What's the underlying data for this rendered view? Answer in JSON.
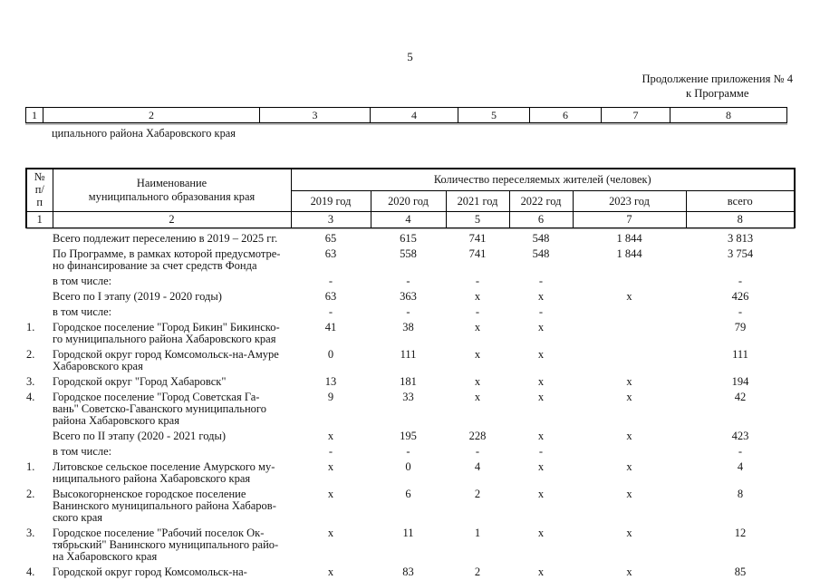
{
  "page": {
    "number": "5",
    "continuation": [
      "Продолжение приложения № 4",
      "к Программе"
    ],
    "carryover_text": "ципального района Хабаровского края"
  },
  "top_table": {
    "index_cells": [
      "1",
      "2",
      "3",
      "4",
      "5",
      "6",
      "7",
      "8"
    ]
  },
  "main_table": {
    "header": {
      "num_col": "№\nп/\nп",
      "name_col": "Наименование\nмуниципального образования края",
      "group_title": "Количество переселяемых жителей (человек)",
      "years": [
        "2019 год",
        "2020 год",
        "2021 год",
        "2022 год",
        "2023 год",
        "всего"
      ],
      "index_cells": [
        "1",
        "2",
        "3",
        "4",
        "5",
        "6",
        "7",
        "8"
      ]
    },
    "rows": [
      {
        "num": "",
        "indent": 1,
        "valign": "top",
        "name_lines": [
          "Всего подлежит переселению в 2019 – 2025 гг."
        ],
        "values": [
          "65",
          "615",
          "741",
          "548",
          "1 844",
          "3 813"
        ]
      },
      {
        "num": "",
        "indent": 0,
        "valign": "top",
        "name_lines": [
          "По Программе, в рамках которой предусмотре-",
          "но финансирование за счет средств Фонда"
        ],
        "values": [
          "63",
          "558",
          "741",
          "548",
          "1 844",
          "3 754"
        ]
      },
      {
        "num": "",
        "indent": 2,
        "valign": "top",
        "name_lines": [
          "в том числе:"
        ],
        "values": [
          "-",
          "-",
          "-",
          "-",
          "",
          "-"
        ]
      },
      {
        "num": "",
        "indent": 0,
        "valign": "top",
        "name_lines": [
          "Всего по I этапу (2019 - 2020 годы)"
        ],
        "values": [
          "63",
          "363",
          "х",
          "х",
          "х",
          "426"
        ]
      },
      {
        "num": "",
        "indent": 2,
        "valign": "top",
        "name_lines": [
          "в том числе:"
        ],
        "values": [
          "-",
          "-",
          "-",
          "-",
          "",
          "-"
        ]
      },
      {
        "num": "1.",
        "indent": 0,
        "valign": "top",
        "name_lines": [
          "Городское поселение \"Город Бикин\" Бикинско-",
          "го муниципального района Хабаровского края"
        ],
        "values": [
          "41",
          "38",
          "х",
          "х",
          "",
          "79"
        ]
      },
      {
        "num": "2.",
        "indent": 0,
        "valign": "top",
        "name_lines": [
          "Городской округ город Комсомольск-на-Амуре",
          "Хабаровского края"
        ],
        "values": [
          "0",
          "111",
          "х",
          "х",
          "",
          "111"
        ]
      },
      {
        "num": "3.",
        "indent": 0,
        "valign": "top",
        "name_lines": [
          "Городской округ \"Город Хабаровск\""
        ],
        "values": [
          "13",
          "181",
          "х",
          "х",
          "х",
          "194"
        ]
      },
      {
        "num": "4.",
        "indent": 0,
        "valign": "middle",
        "name_lines": [
          "Городское поселение \"Город Советская Га-",
          "вань\" Советско-Гаванского муниципального",
          "района Хабаровского края"
        ],
        "values": [
          "9",
          "33",
          "х",
          "х",
          "х",
          "42"
        ]
      },
      {
        "num": "",
        "indent": 0,
        "valign": "top",
        "name_lines": [
          "Всего по II этапу (2020 - 2021 годы)"
        ],
        "values": [
          "х",
          "195",
          "228",
          "х",
          "х",
          "423"
        ]
      },
      {
        "num": "",
        "indent": 2,
        "valign": "top",
        "name_lines": [
          "в том числе:"
        ],
        "values": [
          "-",
          "-",
          "-",
          "-",
          "",
          "-"
        ]
      },
      {
        "num": "1.",
        "indent": 0,
        "valign": "top",
        "name_lines": [
          "Литовское сельское поселение Амурского му-",
          "ниципального района Хабаровского края"
        ],
        "values": [
          "х",
          "0",
          "4",
          "х",
          "х",
          "4"
        ]
      },
      {
        "num": "2.",
        "indent": 0,
        "valign": "top",
        "name_lines": [
          "Высокогорненское городское поселение",
          "Ванинского муниципального района Хабаров-",
          "ского края"
        ],
        "values": [
          "х",
          "6",
          "2",
          "х",
          "х",
          "8"
        ]
      },
      {
        "num": "3.",
        "indent": 0,
        "valign": "top",
        "name_lines": [
          "Городское поселение \"Рабочий поселок Ок-",
          "тябрьский\" Ванинского муниципального райо-",
          "на Хабаровского края"
        ],
        "values": [
          "х",
          "11",
          "1",
          "х",
          "х",
          "12"
        ]
      },
      {
        "num": "4.",
        "indent": 0,
        "valign": "top",
        "name_lines": [
          "Городской округ город Комсомольск-на-"
        ],
        "values": [
          "х",
          "83",
          "2",
          "х",
          "х",
          "85"
        ]
      }
    ]
  }
}
